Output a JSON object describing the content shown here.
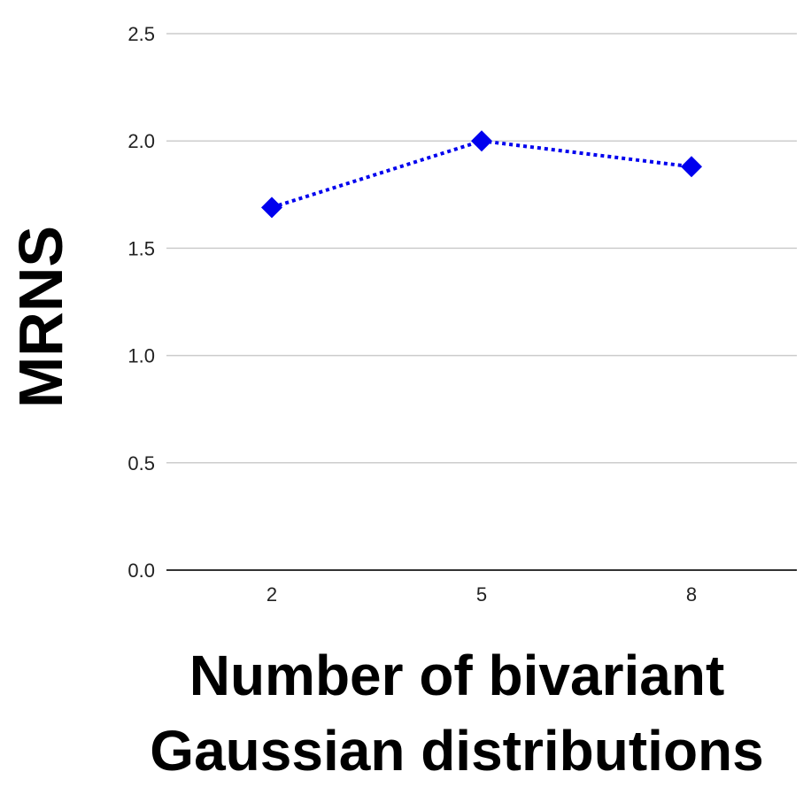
{
  "chart_data": {
    "type": "line",
    "categories": [
      "2",
      "5",
      "8"
    ],
    "series": [
      {
        "values": [
          1.69,
          2.0,
          1.88
        ]
      }
    ],
    "xlabel_lines": [
      "Number of bivariant",
      "Gaussian distributions"
    ],
    "ylabel": "MRNS",
    "ylim": [
      0,
      2.5
    ],
    "yticks": [
      0.0,
      0.5,
      1.0,
      1.5,
      2.0,
      2.5
    ],
    "ytick_labels": [
      "0.0",
      "0.5",
      "1.0",
      "1.5",
      "2.0",
      "2.5"
    ],
    "grid": true,
    "legend": "none",
    "line_style": "dotted",
    "marker": "diamond",
    "series_color": "#0000ee",
    "grid_color": "#cccccc",
    "baseline_color": "#333333"
  }
}
